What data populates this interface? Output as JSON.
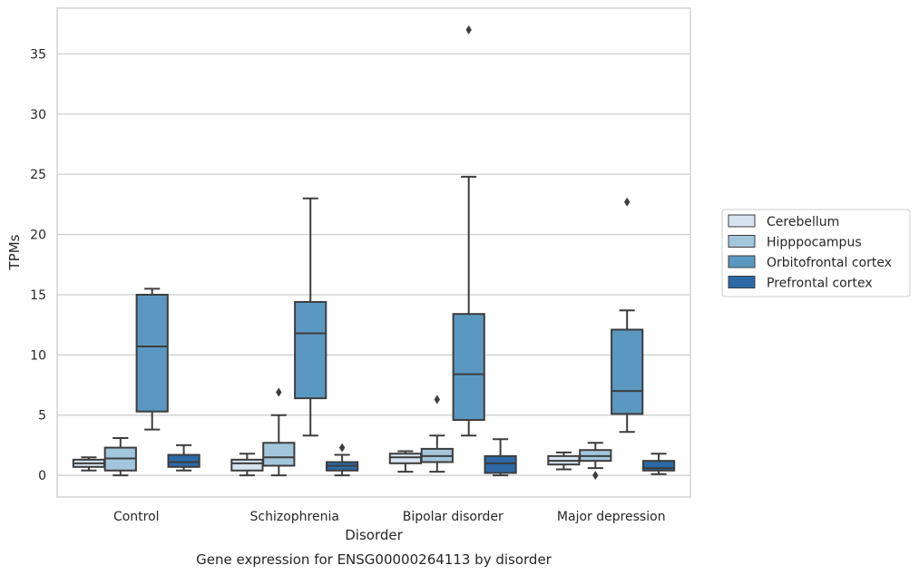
{
  "caption": "Gene expression for ENSG00000264113 by disorder",
  "chart_data": {
    "type": "box",
    "title": "",
    "xlabel": "Disorder",
    "ylabel": "TPMs",
    "ylim": [
      -1.8,
      38.8
    ],
    "yticks": [
      0,
      5,
      10,
      15,
      20,
      25,
      30,
      35
    ],
    "grid": "horizontal",
    "legend_position": "right",
    "categories": [
      "Control",
      "Schizophrenia",
      "Bipolar disorder",
      "Major depression"
    ],
    "series": [
      {
        "name": "Cerebellum",
        "color": "#d6e4f0",
        "boxes": [
          {
            "whisker_low": 0.4,
            "q1": 0.7,
            "median": 1.0,
            "q3": 1.3,
            "whisker_high": 1.5,
            "outliers": []
          },
          {
            "whisker_low": 0.0,
            "q1": 0.4,
            "median": 1.0,
            "q3": 1.3,
            "whisker_high": 1.8,
            "outliers": []
          },
          {
            "whisker_low": 0.3,
            "q1": 1.0,
            "median": 1.5,
            "q3": 1.8,
            "whisker_high": 2.0,
            "outliers": []
          },
          {
            "whisker_low": 0.5,
            "q1": 0.9,
            "median": 1.2,
            "q3": 1.6,
            "whisker_high": 1.9,
            "outliers": []
          }
        ]
      },
      {
        "name": "Hipppocampus",
        "color": "#a3c6dd",
        "boxes": [
          {
            "whisker_low": 0.0,
            "q1": 0.4,
            "median": 1.4,
            "q3": 2.3,
            "whisker_high": 3.1,
            "outliers": []
          },
          {
            "whisker_low": 0.0,
            "q1": 0.8,
            "median": 1.5,
            "q3": 2.7,
            "whisker_high": 5.0,
            "outliers": [
              6.9
            ]
          },
          {
            "whisker_low": 0.3,
            "q1": 1.1,
            "median": 1.6,
            "q3": 2.2,
            "whisker_high": 3.3,
            "outliers": [
              6.3
            ]
          },
          {
            "whisker_low": 0.6,
            "q1": 1.2,
            "median": 1.6,
            "q3": 2.1,
            "whisker_high": 2.7,
            "outliers": [
              0.0
            ]
          }
        ]
      },
      {
        "name": "Orbitofrontal cortex",
        "color": "#5b98c1",
        "boxes": [
          {
            "whisker_low": 3.8,
            "q1": 5.3,
            "median": 10.7,
            "q3": 15.0,
            "whisker_high": 15.5,
            "outliers": []
          },
          {
            "whisker_low": 3.3,
            "q1": 6.4,
            "median": 11.8,
            "q3": 14.4,
            "whisker_high": 23.0,
            "outliers": []
          },
          {
            "whisker_low": 3.3,
            "q1": 4.6,
            "median": 8.4,
            "q3": 13.4,
            "whisker_high": 24.8,
            "outliers": [
              37.0
            ]
          },
          {
            "whisker_low": 3.6,
            "q1": 5.1,
            "median": 7.0,
            "q3": 12.1,
            "whisker_high": 13.7,
            "outliers": [
              22.7
            ]
          }
        ]
      },
      {
        "name": "Prefrontal cortex",
        "color": "#2c69a6",
        "boxes": [
          {
            "whisker_low": 0.4,
            "q1": 0.7,
            "median": 1.1,
            "q3": 1.7,
            "whisker_high": 2.5,
            "outliers": []
          },
          {
            "whisker_low": 0.0,
            "q1": 0.4,
            "median": 0.8,
            "q3": 1.1,
            "whisker_high": 1.7,
            "outliers": [
              2.3
            ]
          },
          {
            "whisker_low": 0.0,
            "q1": 0.2,
            "median": 1.0,
            "q3": 1.6,
            "whisker_high": 3.0,
            "outliers": []
          },
          {
            "whisker_low": 0.1,
            "q1": 0.4,
            "median": 0.6,
            "q3": 1.2,
            "whisker_high": 1.8,
            "outliers": []
          }
        ]
      }
    ]
  }
}
